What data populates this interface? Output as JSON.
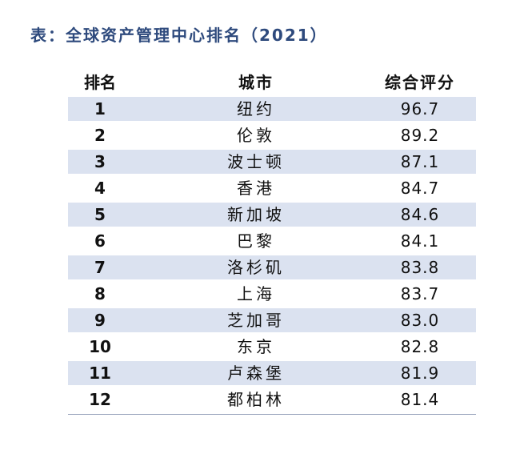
{
  "title": "表：全球资产管理中心排名（2021）",
  "table": {
    "header": [
      "排名",
      "城市",
      "综合评分"
    ],
    "rows": [
      [
        "1",
        "纽约",
        "96.7"
      ],
      [
        "2",
        "伦敦",
        "89.2"
      ],
      [
        "3",
        "波士顿",
        "87.1"
      ],
      [
        "4",
        "香港",
        "84.7"
      ],
      [
        "5",
        "新加坡",
        "84.6"
      ],
      [
        "6",
        "巴黎",
        "84.1"
      ],
      [
        "7",
        "洛杉矶",
        "83.8"
      ],
      [
        "8",
        "上海",
        "83.7"
      ],
      [
        "9",
        "芝加哥",
        "83.0"
      ],
      [
        "10",
        "东京",
        "82.8"
      ],
      [
        "11",
        "卢森堡",
        "81.9"
      ],
      [
        "12",
        "都柏林",
        "81.4"
      ]
    ]
  }
}
